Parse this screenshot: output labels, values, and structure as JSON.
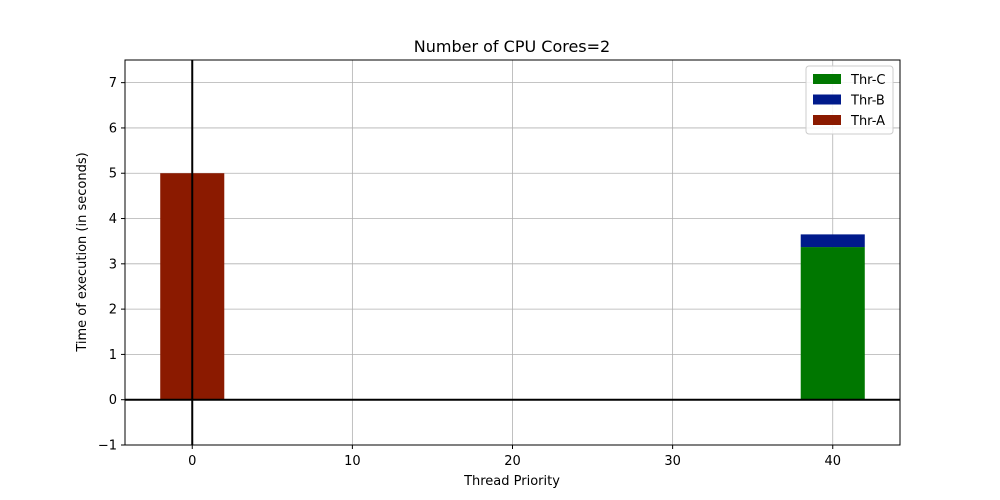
{
  "chart_data": {
    "type": "bar",
    "title": "Number of CPU Cores=2",
    "xlabel": "Thread Priority",
    "ylabel": "Time of execution (in seconds)",
    "xlim": [
      -4.2,
      44.2
    ],
    "ylim": [
      -1,
      7.5
    ],
    "xticks": [
      0,
      10,
      20,
      30,
      40
    ],
    "yticks": [
      -1,
      0,
      1,
      2,
      3,
      4,
      5,
      6,
      7
    ],
    "grid": true,
    "legend_position": "top-right",
    "bar_width": 4,
    "stacked": true,
    "series": [
      {
        "name": "Thr-A",
        "color": "#8b1a00",
        "points": [
          {
            "x": 0,
            "value": 5.0,
            "base": 0
          }
        ]
      },
      {
        "name": "Thr-C",
        "color": "#007700",
        "points": [
          {
            "x": 40,
            "value": 3.37,
            "base": 0
          }
        ]
      },
      {
        "name": "Thr-B",
        "color": "#001a8b",
        "points": [
          {
            "x": 40,
            "value": 0.28,
            "base": 3.37
          }
        ]
      }
    ],
    "legend_order": [
      "Thr-C",
      "Thr-B",
      "Thr-A"
    ]
  }
}
